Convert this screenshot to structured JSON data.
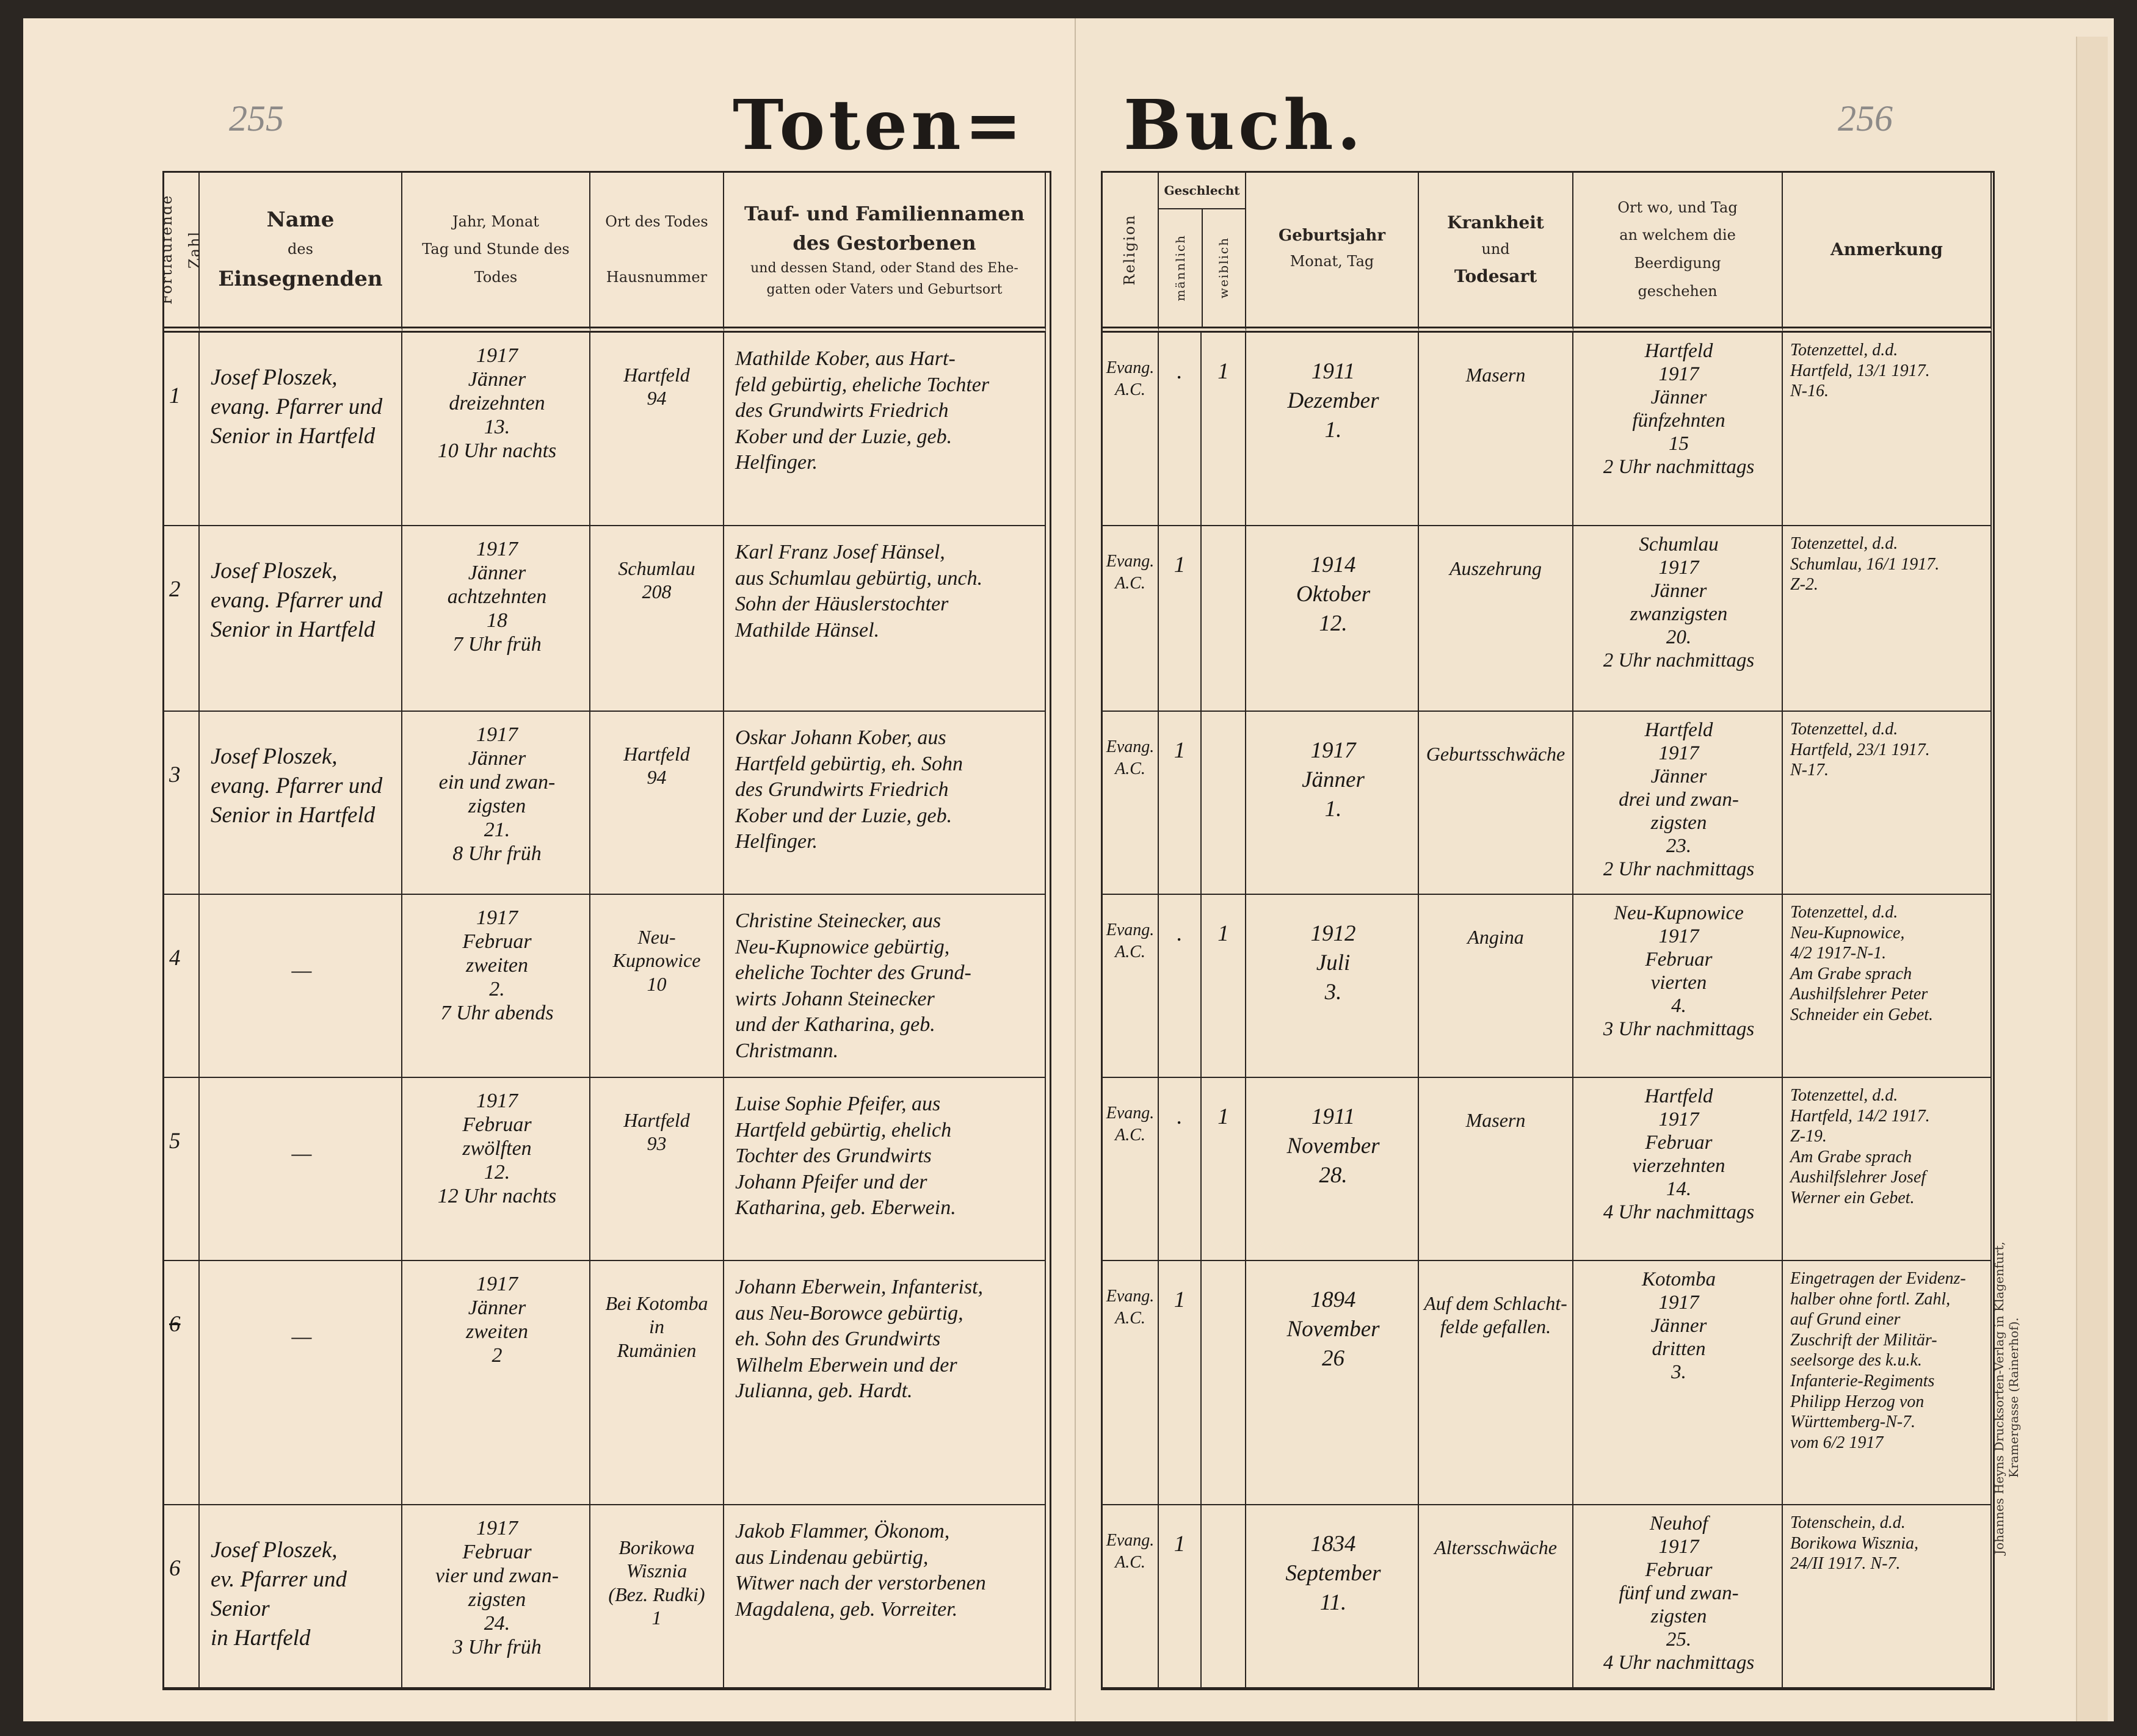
{
  "title_left": "Toten=",
  "title_right": "Buch.",
  "page_numbers": {
    "left": "255",
    "right": "256"
  },
  "printer": "Johannes Heyns Drucksorten-Verlag in Klagenfurt, Kramergasse (Rainerhof).",
  "left_headers": {
    "number": "Fortlaufende Zahl",
    "officiant": {
      "l1": "Name",
      "l2": "des",
      "l3": "Einsegnenden"
    },
    "death_date": "Jahr, Monat\nTag und Stunde des\nTodes",
    "death_place": "Ort des Todes\n\nHausnummer",
    "deceased": {
      "l1": "Tauf- und Familiennamen",
      "l2": "des Gestorbenen",
      "l3": "und dessen Stand, oder Stand des Ehe-\ngatten oder Vaters und Geburtsort"
    }
  },
  "right_headers": {
    "religion": "Religion",
    "sex": "Geschlecht",
    "male": "männlich",
    "female": "weiblich",
    "birth": {
      "l1": "Geburtsjahr",
      "l2": "Monat, Tag"
    },
    "illness": {
      "l1": "Krankheit",
      "l2": "und",
      "l3": "Todesart"
    },
    "burial": "Ort wo, und Tag\nan welchem die Beerdigung\ngeschehen",
    "remark": "Anmerkung"
  },
  "rows": [
    {
      "number": "1",
      "officiant": "Josef Ploszek,\nevang. Pfarrer und\nSenior in Hartfeld",
      "death_date": "1917\nJänner\ndreizehnten\n13.\n10 Uhr nachts",
      "death_place": "Hartfeld\n94",
      "deceased": "Mathilde Kober, aus Hart-\nfeld gebürtig, eheliche Tochter\ndes Grundwirts Friedrich\nKober und der Luzie, geb.\nHelfinger.",
      "religion": "Evang.\nA.C.",
      "male": ".",
      "female": "1",
      "birth": "1911\nDezember\n1.",
      "illness": "Masern",
      "burial": "Hartfeld\n1917\nJänner\nfünfzehnten\n15\n2 Uhr nachmittags",
      "remark": "Totenzettel, d.d.\nHartfeld, 13/1 1917.\nN-16."
    },
    {
      "number": "2",
      "officiant": "Josef Ploszek,\nevang. Pfarrer und\nSenior in Hartfeld",
      "death_date": "1917\nJänner\nachtzehnten\n18\n7 Uhr früh",
      "death_place": "Schumlau\n208",
      "deceased": "Karl Franz Josef Hänsel,\naus Schumlau gebürtig, unch.\nSohn der Häuslerstochter\nMathilde Hänsel.",
      "religion": "Evang.\nA.C.",
      "male": "1",
      "female": "",
      "birth": "1914\nOktober\n12.",
      "illness": "Auszehrung",
      "burial": "Schumlau\n1917\nJänner\nzwanzigsten\n20.\n2 Uhr nachmittags",
      "remark": "Totenzettel, d.d.\nSchumlau, 16/1 1917.\nZ-2."
    },
    {
      "number": "3",
      "officiant": "Josef Ploszek,\nevang. Pfarrer und\nSenior in Hartfeld",
      "death_date": "1917\nJänner\nein und zwan-\nzigsten\n21.\n8 Uhr früh",
      "death_place": "Hartfeld\n94",
      "deceased": "Oskar Johann Kober, aus\nHartfeld gebürtig, eh. Sohn\ndes Grundwirts Friedrich\nKober und der Luzie, geb.\nHelfinger.",
      "religion": "Evang.\nA.C.",
      "male": "1",
      "female": "",
      "birth": "1917\nJänner\n1.",
      "illness": "Geburtsschwäche",
      "burial": "Hartfeld\n1917\nJänner\ndrei und zwan-\nzigsten\n23.\n2 Uhr nachmittags",
      "remark": "Totenzettel, d.d.\nHartfeld, 23/1 1917.\nN-17."
    },
    {
      "number": "4",
      "officiant": "—",
      "death_date": "1917\nFebruar\nzweiten\n2.\n7 Uhr abends",
      "death_place": "Neu-\nKupnowice\n10",
      "deceased": "Christine Steinecker, aus\nNeu-Kupnowice gebürtig,\neheliche Tochter des Grund-\nwirts Johann Steinecker\nund der Katharina, geb.\nChristmann.",
      "religion": "Evang.\nA.C.",
      "male": ".",
      "female": "1",
      "birth": "1912\nJuli\n3.",
      "illness": "Angina",
      "burial": "Neu-Kupnowice\n1917\nFebruar\nvierten\n4.\n3 Uhr nachmittags",
      "remark": "Totenzettel, d.d.\nNeu-Kupnowice,\n4/2 1917-N-1.\nAm Grabe sprach\nAushilfslehrer Peter\nSchneider ein Gebet."
    },
    {
      "number": "5",
      "officiant": "—",
      "death_date": "1917\nFebruar\nzwölften\n12.\n12 Uhr nachts",
      "death_place": "Hartfeld\n93",
      "deceased": "Luise Sophie Pfeifer, aus\nHartfeld gebürtig, ehelich\nTochter des Grundwirts\nJohann Pfeifer und der\nKatharina, geb. Eberwein.",
      "religion": "Evang.\nA.C.",
      "male": ".",
      "female": "1",
      "birth": "1911\nNovember\n28.",
      "illness": "Masern",
      "burial": "Hartfeld\n1917\nFebruar\nvierzehnten\n14.\n4 Uhr nachmittags",
      "remark": "Totenzettel, d.d.\nHartfeld, 14/2 1917.\nZ-19.\nAm Grabe sprach\nAushilfslehrer Josef\nWerner ein Gebet."
    },
    {
      "number": "6",
      "number_struck": true,
      "officiant": "—",
      "death_date": "1917\nJänner\nzweiten\n2",
      "death_place": "Bei Kotomba\nin\nRumänien",
      "deceased": "Johann Eberwein, Infanterist,\naus Neu-Borowce gebürtig,\neh. Sohn des Grundwirts\nWilhelm Eberwein und der\nJulianna, geb. Hardt.",
      "religion": "Evang.\nA.C.",
      "male": "1",
      "female": "",
      "birth": "1894\nNovember\n26",
      "illness": "Auf dem Schlacht-\nfelde gefallen.",
      "burial": "Kotomba\n1917\nJänner\ndritten\n3.",
      "remark": "Eingetragen der Evidenz-\nhalber ohne fortl. Zahl,\nauf Grund einer\nZuschrift der Militär-\nseelsorge des k.u.k.\nInfanterie-Regiments\nPhilipp Herzog von\nWürttemberg-N-7.\nvom 6/2 1917"
    },
    {
      "number": "6",
      "officiant": "Josef Ploszek,\nev. Pfarrer und Senior\nin Hartfeld",
      "death_date": "1917\nFebruar\nvier und zwan-\nzigsten\n24.\n3 Uhr früh",
      "death_place": "Borikowa\nWisznia\n(Bez. Rudki)\n1",
      "deceased": "Jakob Flammer, Ökonom,\naus Lindenau gebürtig,\nWitwer nach der verstorbenen\nMagdalena, geb. Vorreiter.",
      "religion": "Evang.\nA.C.",
      "male": "1",
      "female": "",
      "birth": "1834\nSeptember\n11.",
      "illness": "Altersschwäche",
      "burial": "Neuhof\n1917\nFebruar\nfünf und zwan-\nzigsten\n25.\n4 Uhr nachmittags",
      "remark": "Totenschein, d.d.\nBorikowa Wisznia,\n24/II 1917. N-7."
    }
  ],
  "colors": {
    "paper": "#f4e6d2",
    "ink": "#2a2420",
    "pencil": "#8d8a88"
  }
}
